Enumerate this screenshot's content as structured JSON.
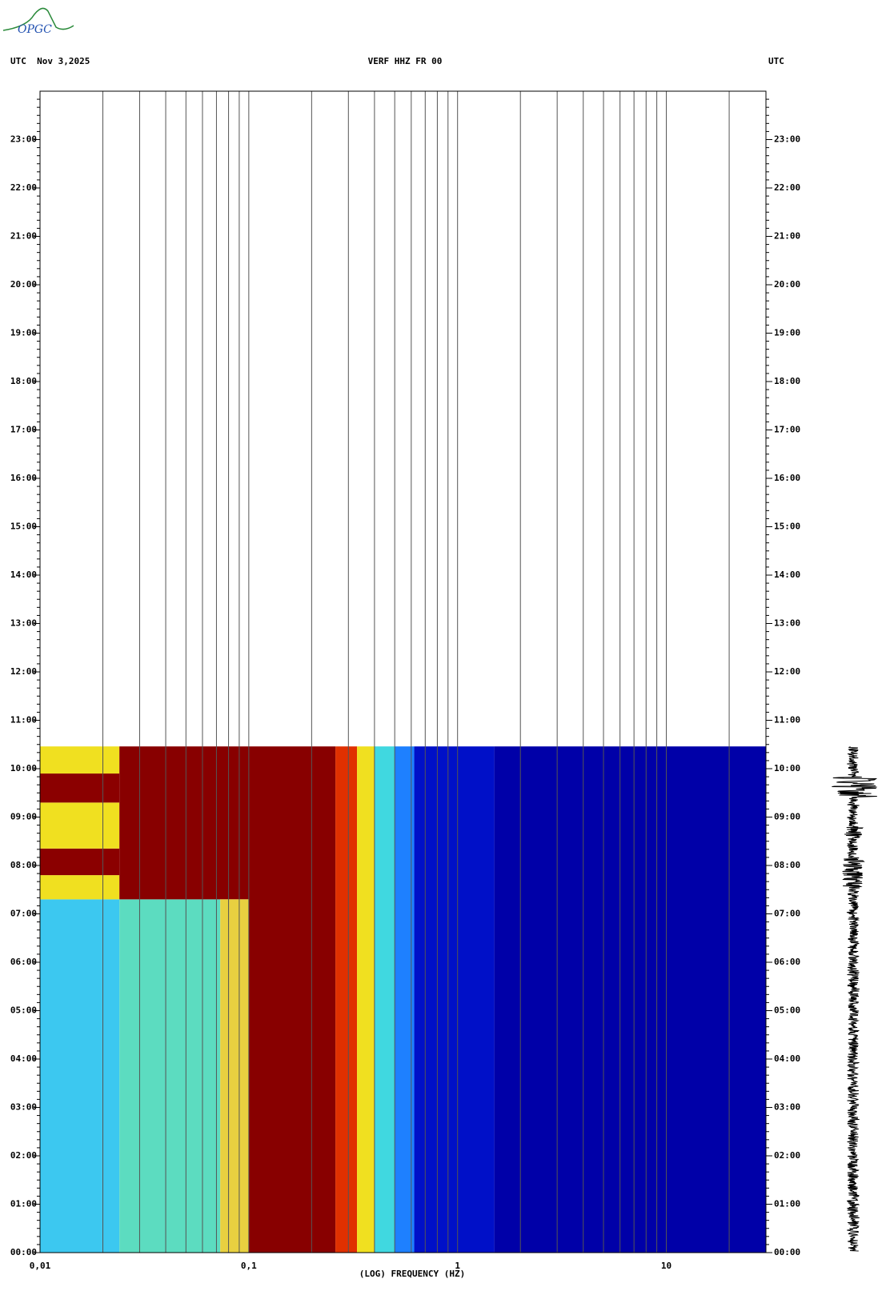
{
  "logo": "OPGC",
  "chart_data": {
    "type": "spectrogram",
    "header_left": "UTC  Nov 3,2025",
    "title": "VERF HHZ FR 00",
    "header_right": "UTC",
    "xlabel": "(LOG) FREQUENCY (HZ)",
    "xscale": "log",
    "xlim": [
      0.01,
      30
    ],
    "xticks": [
      {
        "value": 0.01,
        "label": "0,01"
      },
      {
        "value": 0.1,
        "label": "0,1"
      },
      1,
      10
    ],
    "ylim": [
      0,
      24
    ],
    "yticks": [
      {
        "value": 0,
        "label": "00:00"
      },
      {
        "value": 1,
        "label": "01:00"
      },
      {
        "value": 2,
        "label": "02:00"
      },
      {
        "value": 3,
        "label": "03:00"
      },
      {
        "value": 4,
        "label": "04:00"
      },
      {
        "value": 5,
        "label": "05:00"
      },
      {
        "value": 6,
        "label": "06:00"
      },
      {
        "value": 7,
        "label": "07:00"
      },
      {
        "value": 8,
        "label": "08:00"
      },
      {
        "value": 9,
        "label": "09:00"
      },
      {
        "value": 10,
        "label": "10:00"
      },
      {
        "value": 11,
        "label": "11:00"
      },
      {
        "value": 12,
        "label": "12:00"
      },
      {
        "value": 13,
        "label": "13:00"
      },
      {
        "value": 14,
        "label": "14:00"
      },
      {
        "value": 15,
        "label": "15:00"
      },
      {
        "value": 16,
        "label": "16:00"
      },
      {
        "value": 17,
        "label": "17:00"
      },
      {
        "value": 18,
        "label": "18:00"
      },
      {
        "value": 19,
        "label": "19:00"
      },
      {
        "value": 20,
        "label": "20:00"
      },
      {
        "value": 21,
        "label": "21:00"
      },
      {
        "value": 22,
        "label": "22:00"
      },
      {
        "value": 23,
        "label": "23:00"
      }
    ],
    "grid": true,
    "cells": [
      {
        "f": [
          0.01,
          0.024
        ],
        "t": [
          0,
          7.3
        ],
        "color": "#3cc8f0"
      },
      {
        "f": [
          0.01,
          0.024
        ],
        "t": [
          7.3,
          7.8
        ],
        "color": "#f0e020"
      },
      {
        "f": [
          0.01,
          0.024
        ],
        "t": [
          7.8,
          8.35
        ],
        "color": "#8b0000"
      },
      {
        "f": [
          0.01,
          0.024
        ],
        "t": [
          8.35,
          9.3
        ],
        "color": "#f0e020"
      },
      {
        "f": [
          0.01,
          0.024
        ],
        "t": [
          9.3,
          9.9
        ],
        "color": "#8b0000"
      },
      {
        "f": [
          0.01,
          0.024
        ],
        "t": [
          9.9,
          10.46
        ],
        "color": "#f0e020"
      },
      {
        "f": [
          0.024,
          0.073
        ],
        "t": [
          0,
          7.3
        ],
        "color": "#5cdcc0"
      },
      {
        "f": [
          0.024,
          0.1
        ],
        "t": [
          7.3,
          10.46
        ],
        "color": "#880000"
      },
      {
        "f": [
          0.073,
          0.1
        ],
        "t": [
          0,
          7.3
        ],
        "color": "#e8d040"
      },
      {
        "f": [
          0.1,
          0.26
        ],
        "t": [
          0,
          10.46
        ],
        "color": "#880000"
      },
      {
        "f": [
          0.26,
          0.33
        ],
        "t": [
          0,
          10.46
        ],
        "color": "#e03000"
      },
      {
        "f": [
          0.33,
          0.4
        ],
        "t": [
          0,
          10.46
        ],
        "color": "#f0e020"
      },
      {
        "f": [
          0.4,
          0.5
        ],
        "t": [
          0,
          10.46
        ],
        "color": "#40d8e0"
      },
      {
        "f": [
          0.5,
          0.62
        ],
        "t": [
          0,
          10.46
        ],
        "color": "#1e80ff"
      },
      {
        "f": [
          0.62,
          1.5
        ],
        "t": [
          0,
          10.46
        ],
        "color": "#0010c8"
      },
      {
        "f": [
          1.5,
          30
        ],
        "t": [
          0,
          10.46
        ],
        "color": "#0000a8"
      }
    ]
  }
}
